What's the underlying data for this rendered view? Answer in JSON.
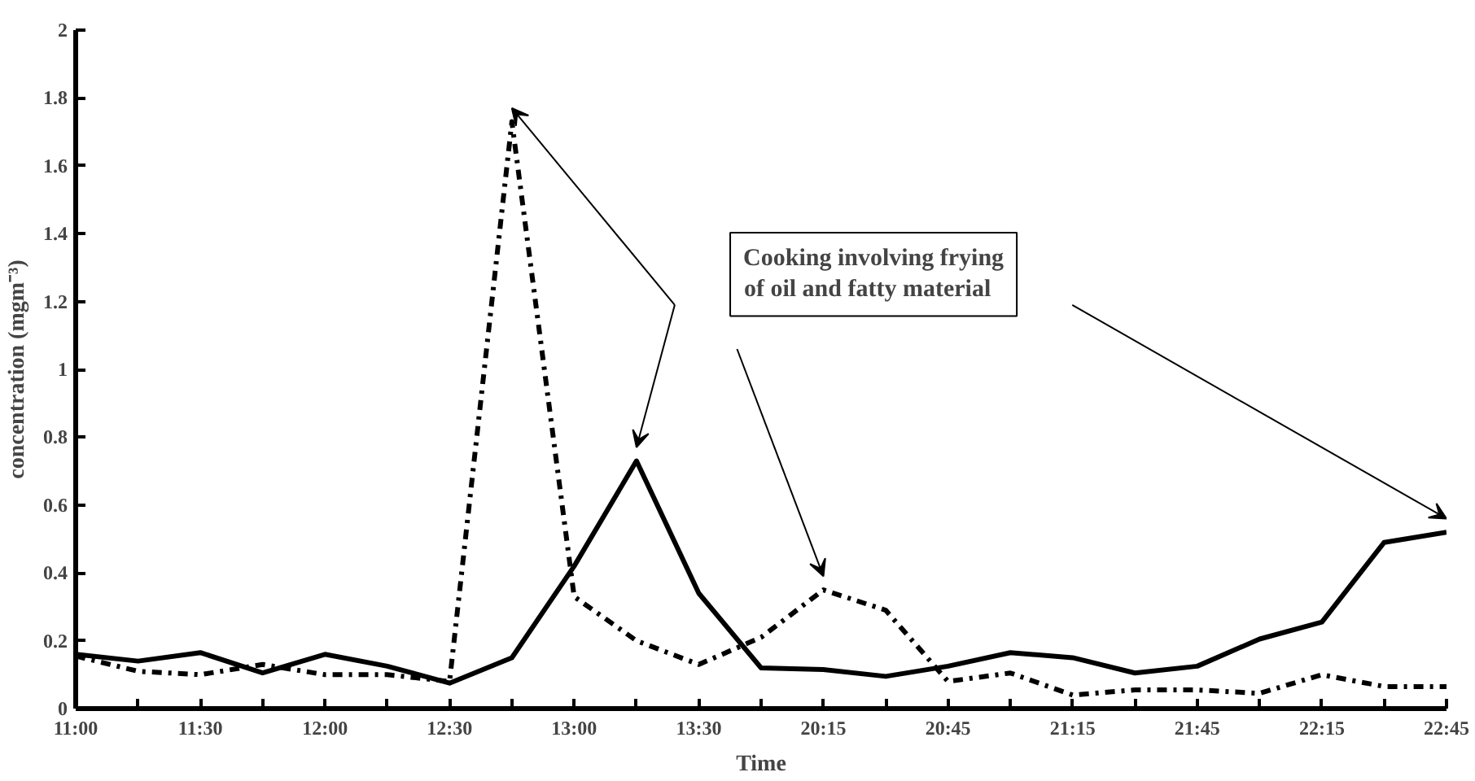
{
  "chart_data": {
    "type": "line",
    "xlabel": "Time",
    "ylabel": "concentration (mgm⁻³)",
    "categories": [
      "11:00",
      null,
      "11:30",
      null,
      "12:00",
      null,
      "12:30",
      null,
      "13:00",
      null,
      "13:30",
      null,
      "20:15",
      null,
      "20:45",
      null,
      "21:15",
      null,
      "21:45",
      null,
      "22:15",
      null,
      "22:45"
    ],
    "series": [
      {
        "color": "#000000",
        "line_style": "solid",
        "values": [
          0.16,
          0.14,
          0.165,
          0.105,
          0.16,
          0.125,
          0.075,
          0.15,
          0.42,
          0.73,
          0.34,
          0.12,
          0.115,
          0.095,
          0.125,
          0.165,
          0.15,
          0.105,
          0.125,
          0.205,
          0.255,
          0.49,
          0.52
        ]
      },
      {
        "color": "#000000",
        "line_style": "dashdot",
        "values": [
          0.155,
          0.11,
          0.1,
          0.13,
          0.1,
          0.1,
          0.08,
          1.73,
          0.33,
          0.2,
          0.13,
          0.21,
          0.35,
          0.29,
          0.08,
          0.105,
          0.04,
          0.055,
          0.055,
          0.045,
          0.1,
          0.065,
          0.065
        ]
      }
    ],
    "ylim": [
      0,
      2
    ],
    "yticks": [
      0,
      0.2,
      0.4,
      0.6,
      0.8,
      1,
      1.2,
      1.4,
      1.6,
      1.8,
      2
    ],
    "annotations": [
      "Cooking involving frying\n of oil and  fatty material"
    ]
  }
}
